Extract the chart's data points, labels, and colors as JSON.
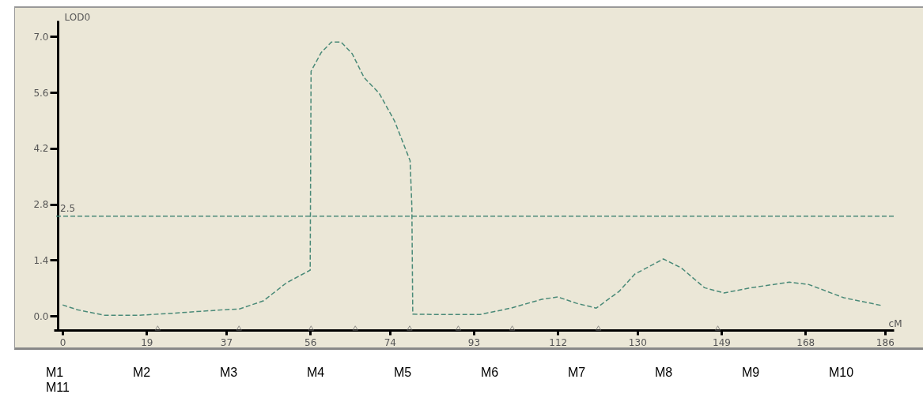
{
  "chart_data": {
    "type": "line",
    "xlabel": "cM",
    "ylabel": "LOD0",
    "xlim": [
      -2,
      188
    ],
    "xticks": [
      0,
      19,
      37,
      56,
      74,
      93,
      112,
      130,
      149,
      168,
      186
    ],
    "ylim": [
      -0.35,
      7.4
    ],
    "yticks": [
      {
        "value": 0,
        "label": "0.0"
      },
      {
        "value": 1.4,
        "label": "1.4"
      },
      {
        "value": 2.8,
        "label": "2.8"
      },
      {
        "value": 4.2,
        "label": "4.2"
      },
      {
        "value": 5.6,
        "label": "5.6"
      },
      {
        "value": 7,
        "label": "7.0"
      }
    ],
    "grid": false,
    "series": [
      {
        "color": "#4a8a78",
        "line_style": "dashed",
        "marker": "none",
        "x": [
          0,
          3.3,
          9.5,
          17.3,
          26,
          36.6,
          40,
          45.4,
          50.6,
          56,
          56.2,
          58.5,
          60.8,
          63,
          65.5,
          68.2,
          71.6,
          75.1,
          78.6,
          79,
          79.2,
          83.9,
          94.4,
          101.4,
          108.4,
          112,
          116.3,
          120.7,
          125.9,
          129.4,
          135.9,
          139.9,
          145.2,
          149.6,
          155.7,
          164.4,
          168.8,
          176.7,
          185.5
        ],
        "values": [
          0.28,
          0.16,
          0.02,
          0.02,
          0.08,
          0.16,
          0.18,
          0.38,
          0.83,
          1.15,
          6.13,
          6.6,
          6.86,
          6.86,
          6.57,
          5.97,
          5.58,
          4.88,
          3.89,
          2.74,
          0.05,
          0.04,
          0.04,
          0.2,
          0.42,
          0.48,
          0.32,
          0.2,
          0.62,
          1.05,
          1.43,
          1.21,
          0.71,
          0.58,
          0.71,
          0.85,
          0.79,
          0.46,
          0.26
        ]
      },
      {
        "type": "scatter",
        "color": "#666666",
        "marker": "triangle",
        "x": [
          21.5,
          39.9,
          56.2,
          66.2,
          78.5,
          89.5,
          101.7,
          121.2,
          148.2
        ],
        "values": [
          -0.3,
          -0.3,
          -0.3,
          -0.3,
          -0.3,
          -0.3,
          -0.3,
          -0.3,
          -0.3
        ]
      }
    ],
    "ref_lines": [
      {
        "axis": "y",
        "value": 2.5,
        "label": "2.5",
        "color": "#4a8a78",
        "line_style": "dashed"
      }
    ],
    "annotations": [
      "M1",
      "M2",
      "M3",
      "M4",
      "M5",
      "M6",
      "M7",
      "M8",
      "M9",
      "M10",
      "M11"
    ]
  }
}
